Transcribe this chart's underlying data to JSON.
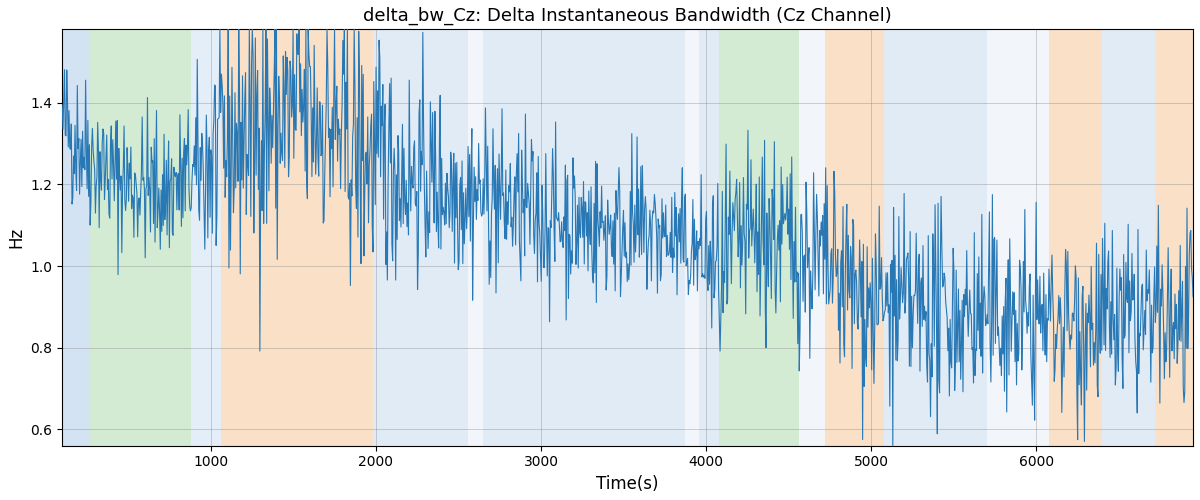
{
  "title": "delta_bw_Cz: Delta Instantaneous Bandwidth (Cz Channel)",
  "xlabel": "Time(s)",
  "ylabel": "Hz",
  "line_color": "#2878b5",
  "line_width": 0.8,
  "background_regions": [
    {
      "xmin": 100,
      "xmax": 270,
      "color": "#a8c8e8",
      "alpha": 0.5
    },
    {
      "xmin": 270,
      "xmax": 880,
      "color": "#a8d8a8",
      "alpha": 0.5
    },
    {
      "xmin": 880,
      "xmax": 1060,
      "color": "#a8c8e8",
      "alpha": 0.3
    },
    {
      "xmin": 1060,
      "xmax": 1980,
      "color": "#f5c897",
      "alpha": 0.55
    },
    {
      "xmin": 1980,
      "xmax": 2560,
      "color": "#a8c8e8",
      "alpha": 0.35
    },
    {
      "xmin": 2560,
      "xmax": 2650,
      "color": "#a8c8e8",
      "alpha": 0.15
    },
    {
      "xmin": 2650,
      "xmax": 3870,
      "color": "#a8c8e8",
      "alpha": 0.35
    },
    {
      "xmin": 3870,
      "xmax": 3960,
      "color": "#a8c8e8",
      "alpha": 0.15
    },
    {
      "xmin": 3960,
      "xmax": 4080,
      "color": "#a8c8e8",
      "alpha": 0.35
    },
    {
      "xmin": 4080,
      "xmax": 4560,
      "color": "#a8d8a8",
      "alpha": 0.5
    },
    {
      "xmin": 4560,
      "xmax": 4720,
      "color": "#a8c8e8",
      "alpha": 0.15
    },
    {
      "xmin": 4720,
      "xmax": 5080,
      "color": "#f5c897",
      "alpha": 0.55
    },
    {
      "xmin": 5080,
      "xmax": 5700,
      "color": "#a8c8e8",
      "alpha": 0.35
    },
    {
      "xmin": 5700,
      "xmax": 5820,
      "color": "#a8c8e8",
      "alpha": 0.15
    },
    {
      "xmin": 5820,
      "xmax": 6080,
      "color": "#a8c8e8",
      "alpha": 0.15
    },
    {
      "xmin": 6080,
      "xmax": 6400,
      "color": "#f5c897",
      "alpha": 0.55
    },
    {
      "xmin": 6400,
      "xmax": 6720,
      "color": "#a8c8e8",
      "alpha": 0.35
    },
    {
      "xmin": 6720,
      "xmax": 6950,
      "color": "#f5c897",
      "alpha": 0.55
    }
  ],
  "xlim": [
    100,
    6950
  ],
  "ylim": [
    0.56,
    1.58
  ],
  "xticks": [
    1000,
    2000,
    3000,
    4000,
    5000,
    6000
  ],
  "yticks": [
    0.6,
    0.8,
    1.0,
    1.2,
    1.4
  ],
  "grid": true,
  "seed": 42,
  "n_points": 1500,
  "figsize": [
    12.0,
    5.0
  ],
  "dpi": 100
}
